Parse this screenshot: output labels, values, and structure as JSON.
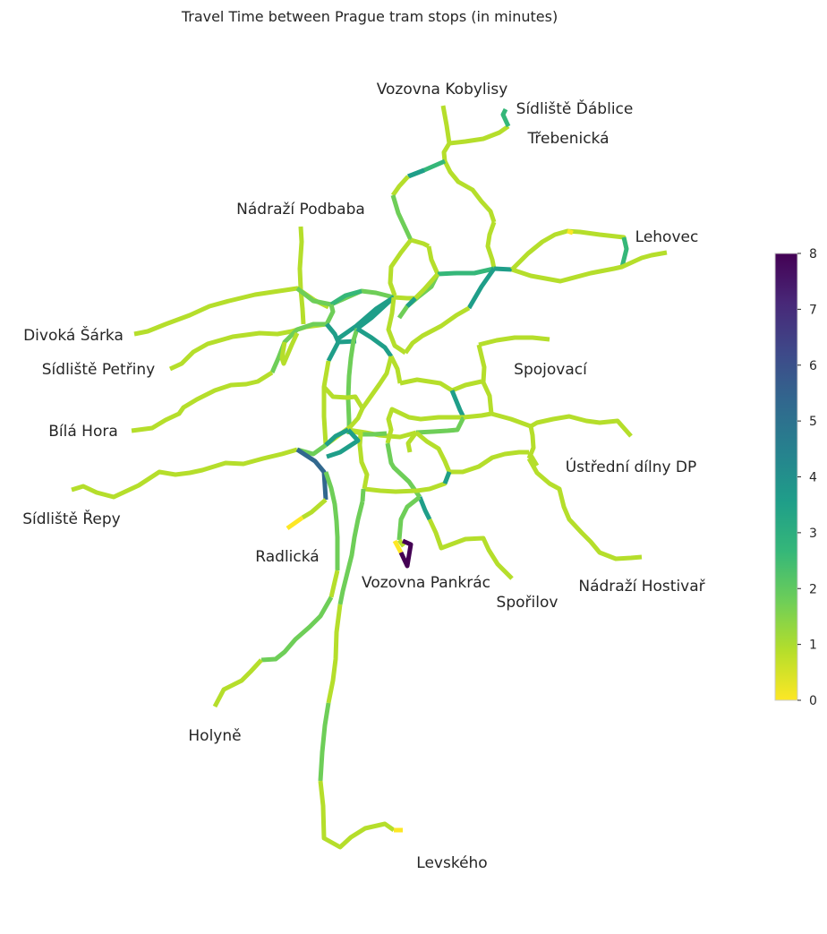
{
  "title": "Travel Time between Prague tram stops (in minutes)",
  "colors": {
    "viridis": [
      "#fde725",
      "#b5de2b",
      "#6ece58",
      "#35b779",
      "#1f9e89",
      "#26828e",
      "#31688e",
      "#3e4989",
      "#482878",
      "#440154"
    ],
    "text": "#262626",
    "background": "#ffffff"
  },
  "stop_labels": [
    "Vozovna Kobylisy",
    "Sídliště Ďáblice",
    "Třebenická",
    "Nádraží Podbaba",
    "Lehovec",
    "Divoká Šárka",
    "Sídliště Petřiny",
    "Spojovací",
    "Bílá Hora",
    "Ústřední dílny DP",
    "Sídliště Řepy",
    "Radlická",
    "Vozovna Pankrác",
    "Spořilov",
    "Nádraží Hostivař",
    "Holyně",
    "Levského"
  ],
  "colorbar": {
    "min": 0,
    "max": 8,
    "ticks": [
      "0",
      "1",
      "2",
      "3",
      "4",
      "5",
      "6",
      "7",
      "8"
    ]
  }
}
